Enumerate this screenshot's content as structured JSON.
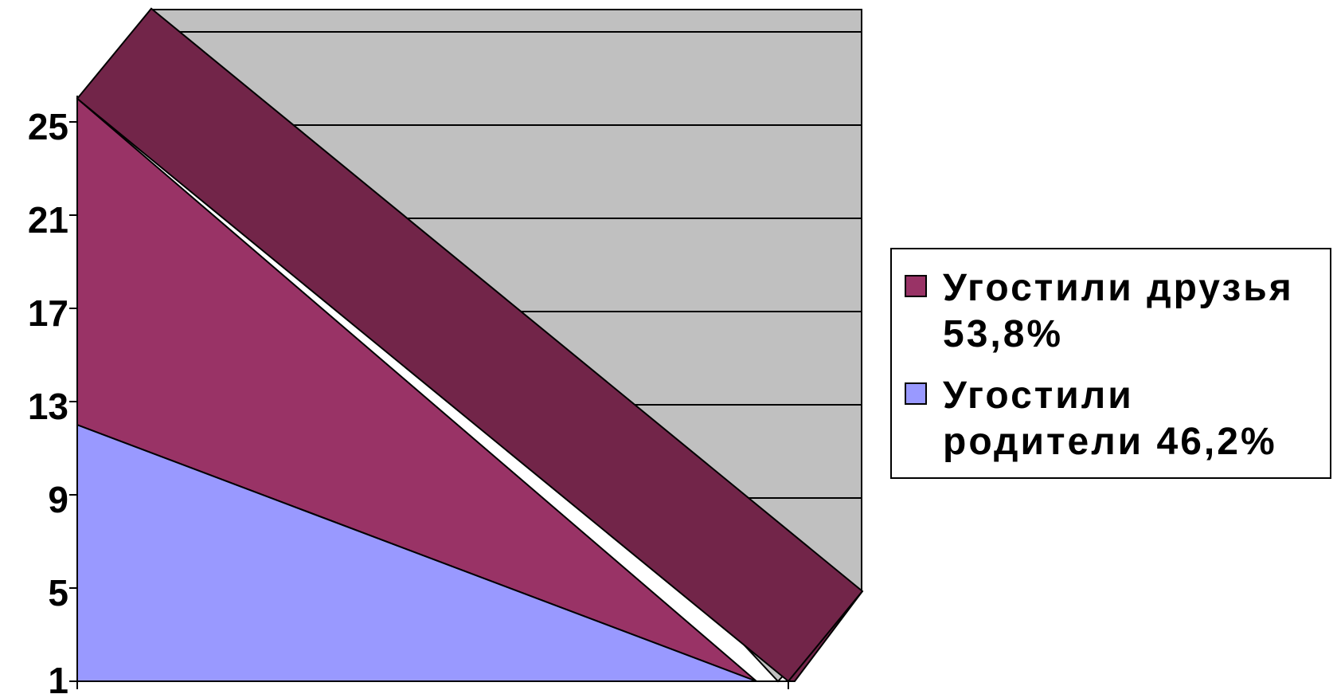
{
  "chart_data": {
    "type": "area",
    "categories": [
      "",
      ""
    ],
    "series": [
      {
        "name": "Угостили родители  46,2%",
        "values": [
          12,
          1
        ],
        "color": "#9999FF"
      },
      {
        "name": "Угостили друзья 53,8%",
        "values": [
          14,
          0
        ],
        "color": "#993366",
        "side_color": "#722549"
      }
    ],
    "yticks": [
      "25",
      "21",
      "17",
      "13",
      "9",
      "5",
      "1"
    ],
    "ylim": [
      1,
      29
    ],
    "wall_color": "#C0C0C0",
    "grid": true,
    "legend": "right"
  },
  "legend": {
    "items": [
      {
        "label": "Угостили друзья 53,8%",
        "color": "#993366"
      },
      {
        "label": "Угостили родители  46,2%",
        "color": "#9999FF"
      }
    ]
  }
}
